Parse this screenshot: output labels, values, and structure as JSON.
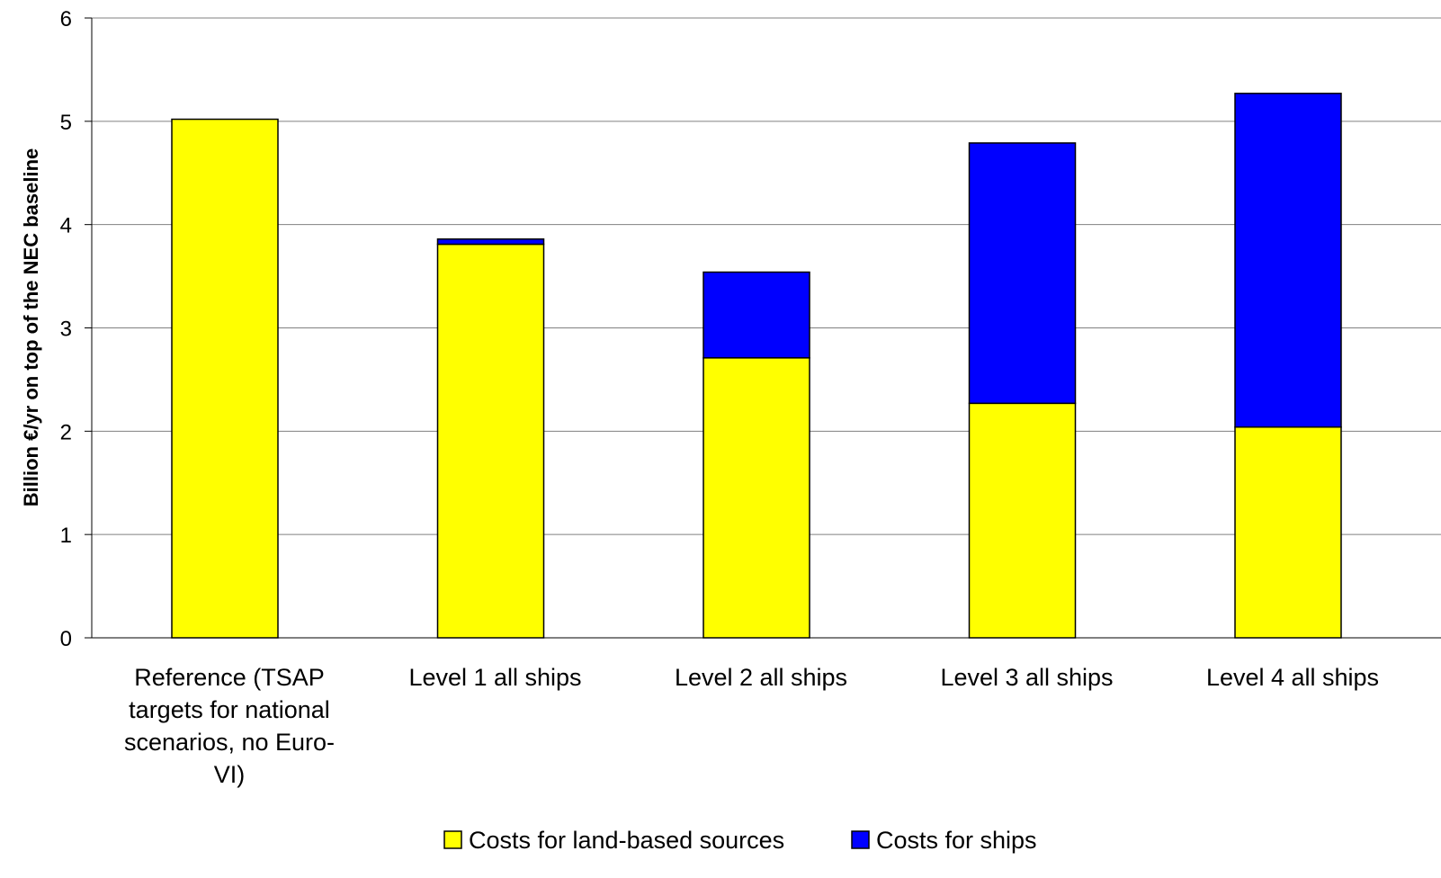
{
  "chart_data": {
    "type": "bar",
    "stacked": true,
    "title": "",
    "xlabel": "",
    "ylabel": "Billion €/yr on top of the NEC baseline",
    "ylim": [
      0,
      6
    ],
    "yticks": [
      0,
      1,
      2,
      3,
      4,
      5,
      6
    ],
    "grid": true,
    "legend_position": "bottom",
    "categories": [
      [
        "Reference (TSAP",
        "targets for national",
        "scenarios, no Euro-",
        "VI)"
      ],
      [
        "Level 1 all ships"
      ],
      [
        "Level 2 all ships"
      ],
      [
        "Level 3 all ships"
      ],
      [
        "Level 4 all ships"
      ]
    ],
    "series": [
      {
        "name": "Costs for land-based sources",
        "color": "#ffff00",
        "values": [
          5.02,
          3.81,
          2.71,
          2.27,
          2.04
        ]
      },
      {
        "name": "Costs for ships",
        "color": "#0000ff",
        "values": [
          0,
          0.05,
          0.83,
          2.52,
          3.23
        ]
      }
    ]
  }
}
